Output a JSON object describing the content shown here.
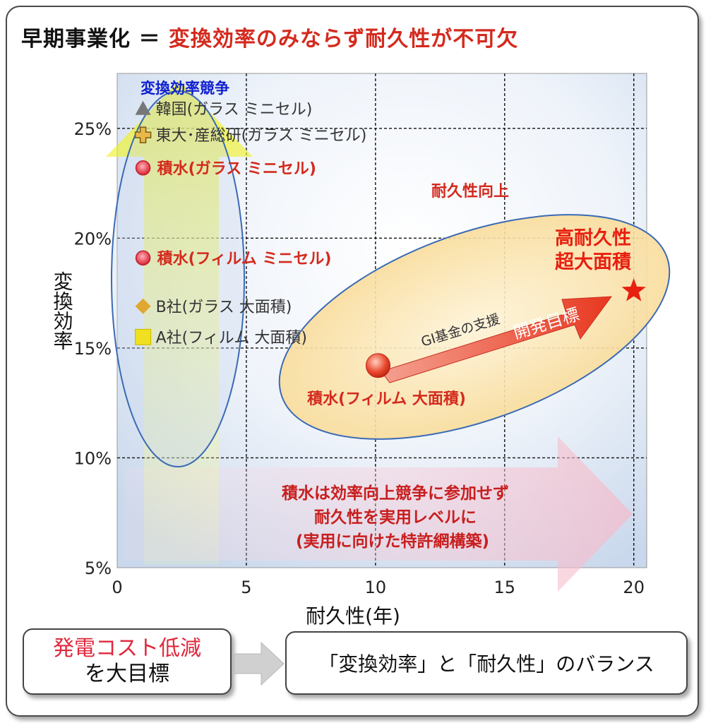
{
  "title": {
    "black": "早期事業化 ＝ ",
    "red": "変換効率のみならず耐久性が不可欠"
  },
  "colors": {
    "red": "#d42a1e",
    "blue_label": "#1020d0",
    "plot_bg": "#e6eef8",
    "ellipse_stroke": "#3a6ab4"
  },
  "chart_data": {
    "type": "scatter",
    "xlabel": "耐久性(年)",
    "ylabel": "変換効率",
    "xlim": [
      0,
      20.5
    ],
    "ylim": [
      5,
      27.5
    ],
    "x_ticks": [
      "0",
      "5",
      "10",
      "15",
      "20"
    ],
    "x_tick_values": [
      0,
      5,
      10,
      15,
      20
    ],
    "y_ticks": [
      "5%",
      "10%",
      "15%",
      "20%",
      "25%"
    ],
    "y_tick_values": [
      5,
      10,
      15,
      20,
      25
    ],
    "grid": true,
    "points": [
      {
        "label": "韓国(ガラス ミニセル)",
        "x": 1.0,
        "y": 25.9,
        "marker": "triangle",
        "color": "#777777",
        "emphasis": false
      },
      {
        "label": "東大･産総研(ガラス ミニセル)",
        "x": 1.0,
        "y": 24.7,
        "marker": "cross",
        "color": "#e8b84a",
        "emphasis": false
      },
      {
        "label": "積水(ガラス ミニセル)",
        "x": 1.0,
        "y": 23.2,
        "marker": "circle-red",
        "color": "#e04050",
        "emphasis": true
      },
      {
        "label": "積水(フィルム ミニセル)",
        "x": 1.0,
        "y": 19.1,
        "marker": "circle-red",
        "color": "#e04050",
        "emphasis": true
      },
      {
        "label": "B社(ガラス 大面積)",
        "x": 1.0,
        "y": 16.9,
        "marker": "diamond",
        "color": "#e0a830",
        "emphasis": false
      },
      {
        "label": "A社(フィルム 大面積)",
        "x": 1.0,
        "y": 15.5,
        "marker": "square",
        "color": "#f0e020",
        "emphasis": false
      },
      {
        "label": "積水(フィルム 大面積)",
        "x": 10.1,
        "y": 14.2,
        "marker": "circle-big",
        "color": "#e83020",
        "emphasis": true
      },
      {
        "label": "",
        "x": 20.0,
        "y": 17.6,
        "marker": "star",
        "color": "#e82010",
        "emphasis": true
      }
    ],
    "annotations": {
      "efficiency_race": "変換効率競争",
      "durability_up": "耐久性向上",
      "target_line1": "高耐久性",
      "target_line2": "超大面積",
      "gi_fund": "GI基金の支援",
      "dev_target": "開発目標",
      "sekisui_line1": "積水は効率向上競争に参加せず",
      "sekisui_line2": "耐久性を実用レベルに",
      "sekisui_line3": "(実用に向けた特許網構築)"
    }
  },
  "footer": {
    "goal_line1": "発電コスト低減",
    "goal_line2": "を大目標",
    "balance": "「変換効率」と「耐久性」のバランス"
  }
}
